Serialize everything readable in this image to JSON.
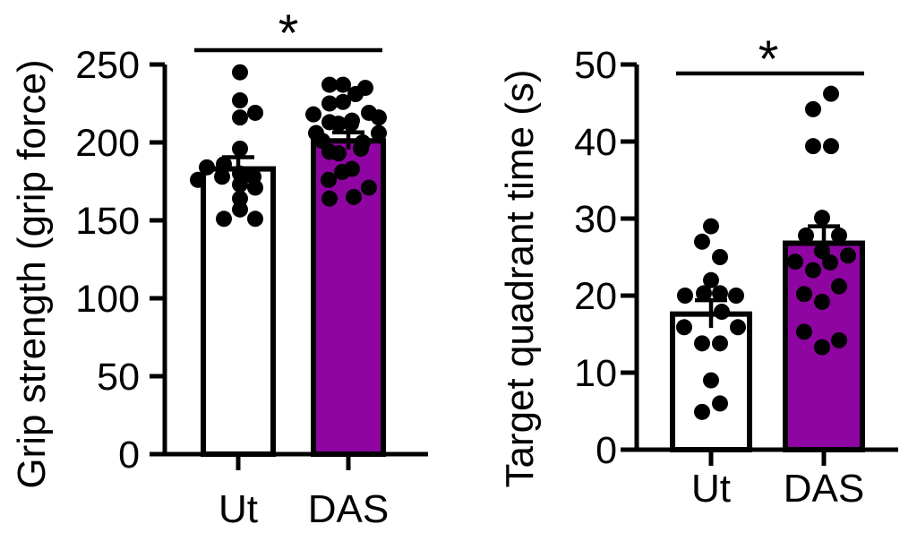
{
  "figure": {
    "background": "#ffffff",
    "point_color": "#000000",
    "axis_color": "#000000",
    "point_format": "[value, x_offset_px_from_bar_center]"
  },
  "chart_data": [
    {
      "type": "bar",
      "title": "",
      "ylabel": "Grip strength (grip force)",
      "xlabel": "",
      "categories": [
        "Ut",
        "DAS"
      ],
      "ylim": [
        0,
        250
      ],
      "yticks": [
        0,
        50,
        100,
        150,
        200,
        250
      ],
      "grid": false,
      "legend": "none",
      "series": [
        {
          "name": "Ut",
          "mean": 183,
          "sem": 7.5,
          "fill": "#FFFFFF",
          "points": [
            [
              245,
              2
            ],
            [
              227,
              2
            ],
            [
              219,
              19
            ],
            [
              216,
              2
            ],
            [
              196,
              2
            ],
            [
              186,
              -16
            ],
            [
              184,
              -35
            ],
            [
              180,
              2
            ],
            [
              178,
              -18
            ],
            [
              178,
              17
            ],
            [
              176,
              -45
            ],
            [
              173,
              2
            ],
            [
              171,
              19
            ],
            [
              164,
              2
            ],
            [
              157,
              2
            ],
            [
              151,
              -16
            ],
            [
              151,
              19
            ]
          ]
        },
        {
          "name": "DAS",
          "mean": 201,
          "sem": 5.5,
          "fill": "#8F05A2",
          "points": [
            [
              237,
              -21
            ],
            [
              237,
              -6
            ],
            [
              235,
              19
            ],
            [
              231,
              8
            ],
            [
              226,
              -6
            ],
            [
              225,
              -21
            ],
            [
              219,
              23
            ],
            [
              218,
              -39
            ],
            [
              216,
              34
            ],
            [
              214,
              4
            ],
            [
              213,
              -21
            ],
            [
              212,
              -11
            ],
            [
              212,
              3
            ],
            [
              206,
              -36
            ],
            [
              206,
              34
            ],
            [
              201,
              -29
            ],
            [
              200,
              16
            ],
            [
              196,
              14
            ],
            [
              194,
              -21
            ],
            [
              193,
              -11
            ],
            [
              183,
              4
            ],
            [
              181,
              -7
            ],
            [
              176,
              -22
            ],
            [
              171,
              23
            ],
            [
              165,
              6
            ],
            [
              164,
              -21
            ]
          ]
        }
      ],
      "significance": {
        "label": "*",
        "between": [
          "Ut",
          "DAS"
        ]
      }
    },
    {
      "type": "bar",
      "title": "",
      "ylabel": "Target quadrant time (s)",
      "xlabel": "",
      "categories": [
        "Ut",
        "DAS"
      ],
      "ylim": [
        0,
        50
      ],
      "yticks": [
        0,
        10,
        20,
        30,
        40,
        50
      ],
      "grid": false,
      "legend": "none",
      "series": [
        {
          "name": "Ut",
          "mean": 17.6,
          "sem": 1.8,
          "fill": "#FFFFFF",
          "points": [
            [
              29,
              0
            ],
            [
              27,
              -10
            ],
            [
              25,
              10
            ],
            [
              22,
              0
            ],
            [
              20.3,
              -8
            ],
            [
              20,
              -29
            ],
            [
              20.3,
              10
            ],
            [
              20,
              28
            ],
            [
              17.9,
              12
            ],
            [
              15.9,
              -30
            ],
            [
              15.9,
              30
            ],
            [
              13.8,
              -10
            ],
            [
              13.8,
              10
            ],
            [
              9,
              0
            ],
            [
              6,
              10
            ],
            [
              4.9,
              -10
            ]
          ]
        },
        {
          "name": "DAS",
          "mean": 26.8,
          "sem": 2.2,
          "fill": "#8F05A2",
          "points": [
            [
              46.2,
              8
            ],
            [
              44.2,
              -12
            ],
            [
              39.4,
              -12
            ],
            [
              39.4,
              8
            ],
            [
              30.1,
              -2
            ],
            [
              27.8,
              -20
            ],
            [
              27.8,
              17
            ],
            [
              25.8,
              -2
            ],
            [
              25.2,
              27
            ],
            [
              24.4,
              -32
            ],
            [
              24.3,
              7
            ],
            [
              23.3,
              -12
            ],
            [
              21.2,
              17
            ],
            [
              20.2,
              -22
            ],
            [
              19.2,
              -2
            ],
            [
              15.3,
              -22
            ],
            [
              14.2,
              17
            ],
            [
              13.3,
              -2
            ]
          ]
        }
      ],
      "significance": {
        "label": "*",
        "between": [
          "Ut",
          "DAS"
        ]
      }
    }
  ]
}
